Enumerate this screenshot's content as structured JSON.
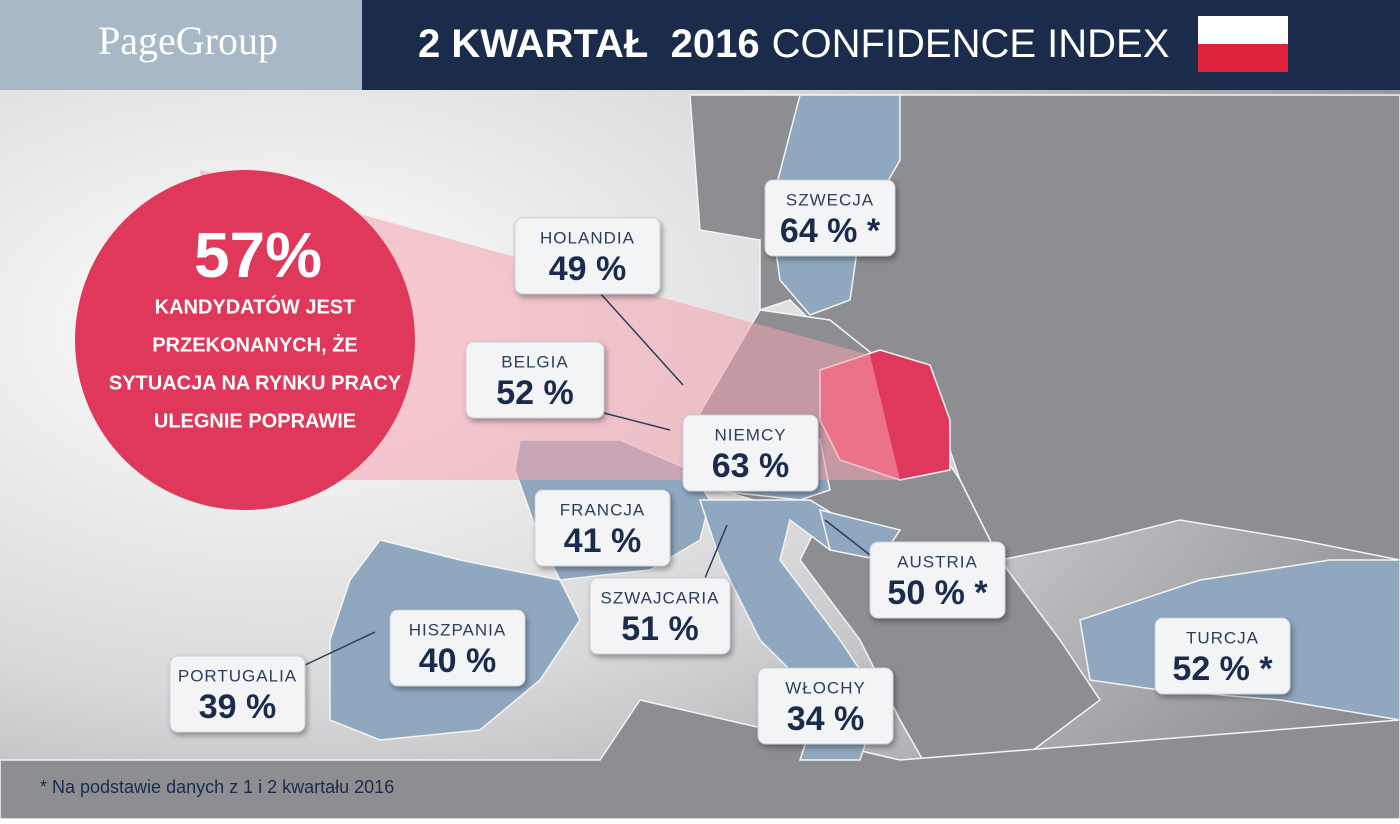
{
  "header": {
    "logo": "PageGroup",
    "title_bold": "2 KWARTAŁ  2016",
    "title_light": "CONFIDENCE INDEX"
  },
  "highlight": {
    "value": "57%",
    "lines": [
      "KANDYDATÓW JEST",
      "PRZEKONANYCH, ŻE",
      "SYTUACJA NA RYNKU PRACY",
      "ULEGNIE POPRAWIE"
    ]
  },
  "countries": [
    {
      "name": "HOLANDIA",
      "value": "49 %"
    },
    {
      "name": "SZWECJA",
      "value": "64 % *"
    },
    {
      "name": "BELGIA",
      "value": "52 %"
    },
    {
      "name": "NIEMCY",
      "value": "63 %"
    },
    {
      "name": "FRANCJA",
      "value": "41 %"
    },
    {
      "name": "AUSTRIA",
      "value": "50 % *"
    },
    {
      "name": "SZWAJCARIA",
      "value": "51 %"
    },
    {
      "name": "HISZPANIA",
      "value": "40 %"
    },
    {
      "name": "PORTUGALIA",
      "value": "39 %"
    },
    {
      "name": "WŁOCHY",
      "value": "34 %"
    },
    {
      "name": "TURCJA",
      "value": "52 % *"
    }
  ],
  "footnote": "* Na podstawie danych z 1 i 2 kwartału 2016"
}
